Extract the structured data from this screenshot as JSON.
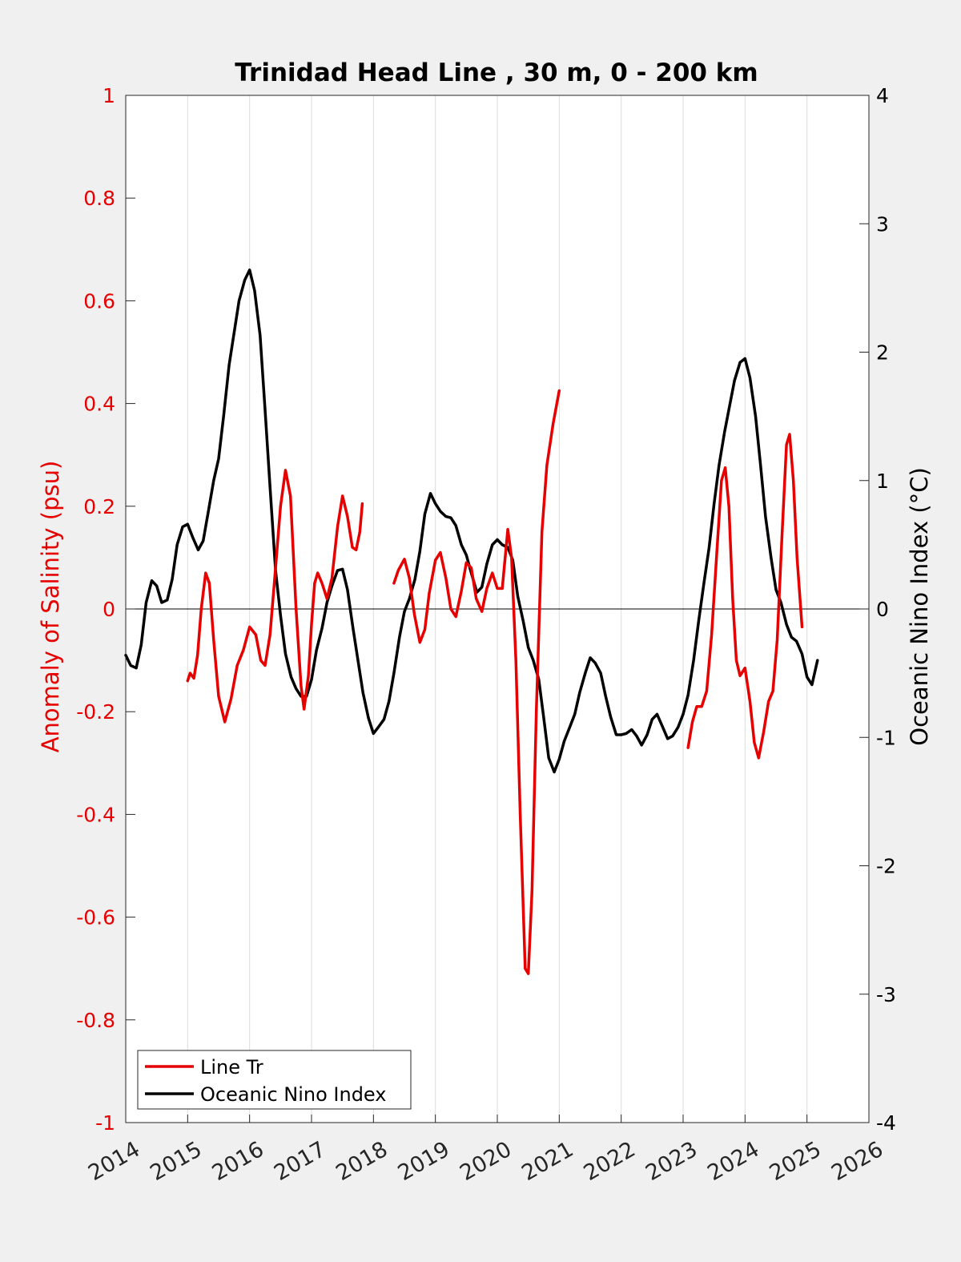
{
  "chart_data": {
    "type": "line",
    "title": "Trinidad Head Line , 30 m, 0 - 200 km",
    "xlabel": "",
    "ylabel_left": "Anomaly of Salinity (psu)",
    "ylabel_right": "Oceanic Nino Index (°C)",
    "xlim": [
      2014,
      2026
    ],
    "ylim_left": [
      -1,
      1
    ],
    "ylim_right": [
      -4,
      4
    ],
    "x_ticks": [
      "2014",
      "2015",
      "2016",
      "2017",
      "2018",
      "2019",
      "2020",
      "2021",
      "2022",
      "2023",
      "2024",
      "2025",
      "2026"
    ],
    "y_ticks_left": [
      "-1",
      "-0.8",
      "-0.6",
      "-0.4",
      "-0.2",
      "0",
      "0.2",
      "0.4",
      "0.6",
      "0.8",
      "1"
    ],
    "y_ticks_right": [
      "-4",
      "-3",
      "-2",
      "-1",
      "0",
      "1",
      "2",
      "3",
      "4"
    ],
    "grid": "vertical",
    "legend_position": "bottom-left",
    "colors": {
      "salinity": "#e60000",
      "oni": "#000000",
      "left_axis": "#e60000",
      "right_axis": "#000000"
    },
    "series": [
      {
        "name": "Line Tr",
        "axis": "left",
        "segments": [
          [
            [
              2015.0,
              -0.14
            ],
            [
              2015.04,
              -0.125
            ],
            [
              2015.1,
              -0.135
            ],
            [
              2015.16,
              -0.09
            ],
            [
              2015.22,
              0.0
            ],
            [
              2015.29,
              0.07
            ],
            [
              2015.35,
              0.05
            ],
            [
              2015.42,
              -0.06
            ],
            [
              2015.5,
              -0.17
            ],
            [
              2015.6,
              -0.22
            ],
            [
              2015.7,
              -0.175
            ],
            [
              2015.8,
              -0.11
            ],
            [
              2015.9,
              -0.08
            ],
            [
              2016.0,
              -0.035
            ],
            [
              2016.1,
              -0.05
            ],
            [
              2016.18,
              -0.1
            ],
            [
              2016.25,
              -0.11
            ],
            [
              2016.33,
              -0.05
            ],
            [
              2016.42,
              0.08
            ],
            [
              2016.5,
              0.2
            ],
            [
              2016.58,
              0.27
            ],
            [
              2016.66,
              0.22
            ],
            [
              2016.75,
              0.0
            ],
            [
              2016.83,
              -0.15
            ],
            [
              2016.88,
              -0.195
            ],
            [
              2016.95,
              -0.13
            ],
            [
              2017.0,
              -0.03
            ],
            [
              2017.05,
              0.05
            ],
            [
              2017.1,
              0.07
            ],
            [
              2017.17,
              0.05
            ],
            [
              2017.25,
              0.02
            ],
            [
              2017.33,
              0.06
            ],
            [
              2017.42,
              0.16
            ],
            [
              2017.5,
              0.22
            ],
            [
              2017.58,
              0.18
            ],
            [
              2017.66,
              0.12
            ],
            [
              2017.72,
              0.115
            ],
            [
              2017.78,
              0.15
            ],
            [
              2017.82,
              0.205
            ]
          ],
          [
            [
              2018.33,
              0.05
            ],
            [
              2018.4,
              0.075
            ],
            [
              2018.5,
              0.097
            ],
            [
              2018.58,
              0.06
            ],
            [
              2018.66,
              -0.01
            ],
            [
              2018.75,
              -0.065
            ],
            [
              2018.83,
              -0.04
            ],
            [
              2018.9,
              0.03
            ],
            [
              2019.0,
              0.095
            ],
            [
              2019.08,
              0.11
            ],
            [
              2019.17,
              0.06
            ],
            [
              2019.25,
              0.0
            ],
            [
              2019.33,
              -0.015
            ],
            [
              2019.42,
              0.035
            ],
            [
              2019.5,
              0.09
            ],
            [
              2019.58,
              0.08
            ],
            [
              2019.66,
              0.02
            ],
            [
              2019.75,
              -0.005
            ],
            [
              2019.83,
              0.04
            ],
            [
              2019.92,
              0.07
            ],
            [
              2020.0,
              0.04
            ],
            [
              2020.08,
              0.04
            ],
            [
              2020.17,
              0.155
            ],
            [
              2020.23,
              0.1
            ],
            [
              2020.3,
              -0.1
            ],
            [
              2020.37,
              -0.4
            ],
            [
              2020.45,
              -0.7
            ],
            [
              2020.5,
              -0.71
            ],
            [
              2020.56,
              -0.55
            ],
            [
              2020.63,
              -0.2
            ],
            [
              2020.72,
              0.15
            ],
            [
              2020.8,
              0.28
            ],
            [
              2020.9,
              0.36
            ],
            [
              2021.0,
              0.425
            ]
          ],
          [
            [
              2023.08,
              -0.27
            ],
            [
              2023.15,
              -0.22
            ],
            [
              2023.22,
              -0.19
            ],
            [
              2023.3,
              -0.19
            ],
            [
              2023.38,
              -0.16
            ],
            [
              2023.46,
              -0.05
            ],
            [
              2023.55,
              0.12
            ],
            [
              2023.62,
              0.25
            ],
            [
              2023.68,
              0.275
            ],
            [
              2023.74,
              0.2
            ],
            [
              2023.8,
              0.02
            ],
            [
              2023.86,
              -0.1
            ],
            [
              2023.92,
              -0.13
            ],
            [
              2024.0,
              -0.115
            ],
            [
              2024.08,
              -0.18
            ],
            [
              2024.15,
              -0.26
            ],
            [
              2024.22,
              -0.29
            ],
            [
              2024.3,
              -0.24
            ],
            [
              2024.38,
              -0.18
            ],
            [
              2024.45,
              -0.16
            ],
            [
              2024.52,
              -0.06
            ],
            [
              2024.6,
              0.15
            ],
            [
              2024.67,
              0.32
            ],
            [
              2024.72,
              0.34
            ],
            [
              2024.78,
              0.25
            ],
            [
              2024.84,
              0.1
            ],
            [
              2024.92,
              -0.035
            ]
          ]
        ]
      },
      {
        "name": "Oceanic Nino Index",
        "axis": "right",
        "points": [
          [
            2014.0,
            -0.36
          ],
          [
            2014.08,
            -0.44
          ],
          [
            2014.17,
            -0.46
          ],
          [
            2014.25,
            -0.28
          ],
          [
            2014.33,
            0.05
          ],
          [
            2014.42,
            0.22
          ],
          [
            2014.5,
            0.18
          ],
          [
            2014.58,
            0.05
          ],
          [
            2014.67,
            0.07
          ],
          [
            2014.75,
            0.23
          ],
          [
            2014.83,
            0.5
          ],
          [
            2014.92,
            0.64
          ],
          [
            2015.0,
            0.66
          ],
          [
            2015.08,
            0.56
          ],
          [
            2015.17,
            0.46
          ],
          [
            2015.25,
            0.53
          ],
          [
            2015.33,
            0.75
          ],
          [
            2015.42,
            1.0
          ],
          [
            2015.5,
            1.17
          ],
          [
            2015.58,
            1.5
          ],
          [
            2015.67,
            1.9
          ],
          [
            2015.75,
            2.15
          ],
          [
            2015.83,
            2.4
          ],
          [
            2015.92,
            2.56
          ],
          [
            2016.0,
            2.64
          ],
          [
            2016.08,
            2.48
          ],
          [
            2016.17,
            2.13
          ],
          [
            2016.25,
            1.55
          ],
          [
            2016.33,
            0.95
          ],
          [
            2016.42,
            0.3
          ],
          [
            2016.5,
            -0.05
          ],
          [
            2016.58,
            -0.35
          ],
          [
            2016.67,
            -0.53
          ],
          [
            2016.75,
            -0.62
          ],
          [
            2016.83,
            -0.68
          ],
          [
            2016.92,
            -0.68
          ],
          [
            2017.0,
            -0.55
          ],
          [
            2017.08,
            -0.32
          ],
          [
            2017.17,
            -0.15
          ],
          [
            2017.25,
            0.05
          ],
          [
            2017.33,
            0.18
          ],
          [
            2017.42,
            0.3
          ],
          [
            2017.5,
            0.31
          ],
          [
            2017.58,
            0.15
          ],
          [
            2017.67,
            -0.15
          ],
          [
            2017.75,
            -0.4
          ],
          [
            2017.83,
            -0.65
          ],
          [
            2017.92,
            -0.85
          ],
          [
            2018.0,
            -0.97
          ],
          [
            2018.08,
            -0.92
          ],
          [
            2018.17,
            -0.86
          ],
          [
            2018.25,
            -0.72
          ],
          [
            2018.33,
            -0.5
          ],
          [
            2018.42,
            -0.22
          ],
          [
            2018.5,
            -0.02
          ],
          [
            2018.58,
            0.08
          ],
          [
            2018.67,
            0.23
          ],
          [
            2018.75,
            0.45
          ],
          [
            2018.83,
            0.74
          ],
          [
            2018.92,
            0.9
          ],
          [
            2019.0,
            0.82
          ],
          [
            2019.08,
            0.76
          ],
          [
            2019.17,
            0.72
          ],
          [
            2019.25,
            0.71
          ],
          [
            2019.33,
            0.65
          ],
          [
            2019.42,
            0.5
          ],
          [
            2019.5,
            0.42
          ],
          [
            2019.58,
            0.28
          ],
          [
            2019.67,
            0.13
          ],
          [
            2019.75,
            0.17
          ],
          [
            2019.83,
            0.35
          ],
          [
            2019.92,
            0.5
          ],
          [
            2020.0,
            0.54
          ],
          [
            2020.08,
            0.5
          ],
          [
            2020.17,
            0.48
          ],
          [
            2020.25,
            0.38
          ],
          [
            2020.33,
            0.1
          ],
          [
            2020.42,
            -0.1
          ],
          [
            2020.5,
            -0.3
          ],
          [
            2020.58,
            -0.4
          ],
          [
            2020.67,
            -0.55
          ],
          [
            2020.75,
            -0.85
          ],
          [
            2020.83,
            -1.16
          ],
          [
            2020.92,
            -1.27
          ],
          [
            2021.0,
            -1.17
          ],
          [
            2021.08,
            -1.03
          ],
          [
            2021.17,
            -0.92
          ],
          [
            2021.25,
            -0.82
          ],
          [
            2021.33,
            -0.65
          ],
          [
            2021.42,
            -0.5
          ],
          [
            2021.5,
            -0.38
          ],
          [
            2021.58,
            -0.42
          ],
          [
            2021.67,
            -0.5
          ],
          [
            2021.75,
            -0.68
          ],
          [
            2021.83,
            -0.84
          ],
          [
            2021.92,
            -0.98
          ],
          [
            2022.0,
            -0.98
          ],
          [
            2022.08,
            -0.97
          ],
          [
            2022.17,
            -0.94
          ],
          [
            2022.25,
            -0.99
          ],
          [
            2022.33,
            -1.06
          ],
          [
            2022.42,
            -0.98
          ],
          [
            2022.5,
            -0.86
          ],
          [
            2022.58,
            -0.82
          ],
          [
            2022.67,
            -0.92
          ],
          [
            2022.75,
            -1.01
          ],
          [
            2022.83,
            -0.99
          ],
          [
            2022.92,
            -0.92
          ],
          [
            2023.0,
            -0.82
          ],
          [
            2023.08,
            -0.67
          ],
          [
            2023.17,
            -0.4
          ],
          [
            2023.25,
            -0.1
          ],
          [
            2023.33,
            0.18
          ],
          [
            2023.42,
            0.48
          ],
          [
            2023.5,
            0.82
          ],
          [
            2023.58,
            1.12
          ],
          [
            2023.67,
            1.38
          ],
          [
            2023.75,
            1.58
          ],
          [
            2023.83,
            1.78
          ],
          [
            2023.92,
            1.92
          ],
          [
            2024.0,
            1.95
          ],
          [
            2024.08,
            1.8
          ],
          [
            2024.17,
            1.5
          ],
          [
            2024.25,
            1.12
          ],
          [
            2024.33,
            0.72
          ],
          [
            2024.42,
            0.4
          ],
          [
            2024.5,
            0.15
          ],
          [
            2024.58,
            0.05
          ],
          [
            2024.67,
            -0.12
          ],
          [
            2024.75,
            -0.22
          ],
          [
            2024.83,
            -0.25
          ],
          [
            2024.92,
            -0.35
          ],
          [
            2025.0,
            -0.53
          ],
          [
            2025.08,
            -0.59
          ],
          [
            2025.17,
            -0.4
          ]
        ]
      }
    ]
  }
}
